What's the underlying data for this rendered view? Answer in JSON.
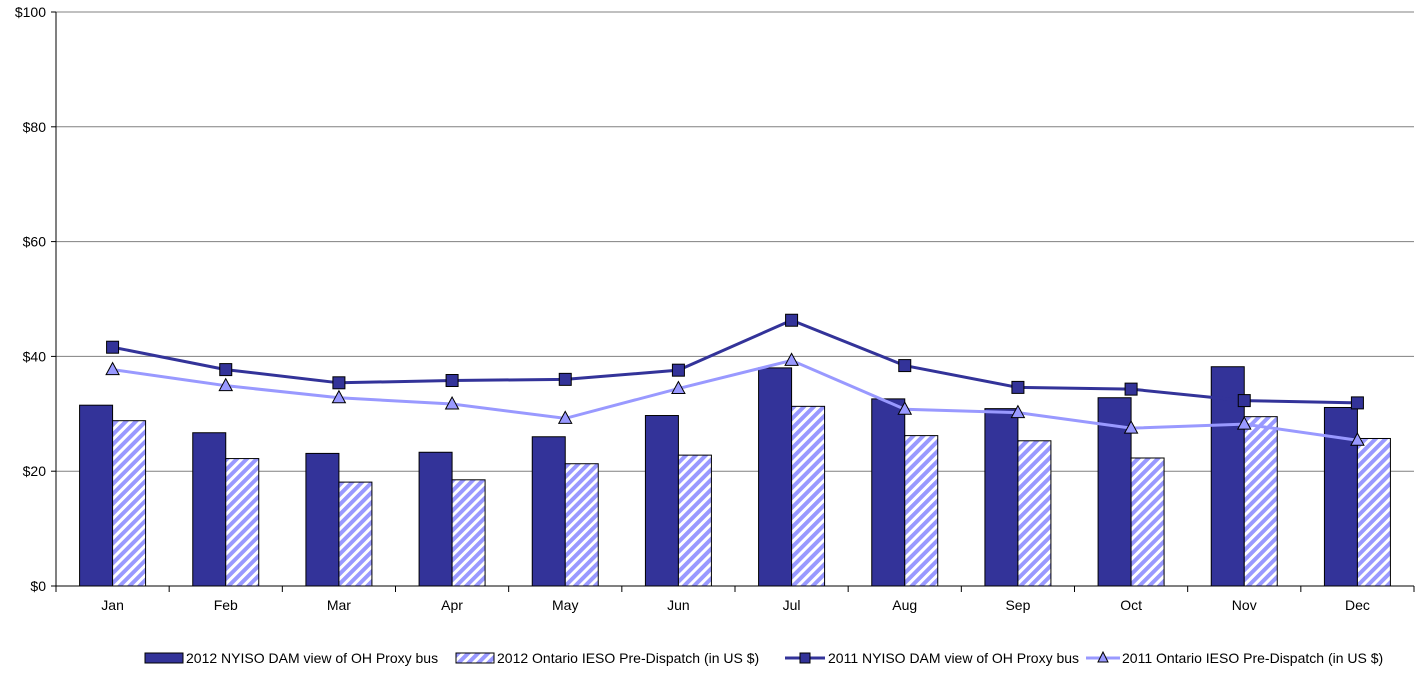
{
  "colors": {
    "bar_2012_nyiso": "#333399",
    "bar_2012_ieso_fill": "#9999ff",
    "line_2011_nyiso": "#333399",
    "line_2011_ieso": "#9999ff",
    "grid": "#808080"
  },
  "chart_data": {
    "type": "bar",
    "categories": [
      "Jan",
      "Feb",
      "Mar",
      "Apr",
      "May",
      "Jun",
      "Jul",
      "Aug",
      "Sep",
      "Oct",
      "Nov",
      "Dec"
    ],
    "y_tick_labels": [
      "$0",
      "$20",
      "$40",
      "$60",
      "$80",
      "$100"
    ],
    "y_ticks": [
      0,
      20,
      40,
      60,
      80,
      100
    ],
    "ylim": [
      0,
      100
    ],
    "grid": true,
    "legend_position": "bottom",
    "series": [
      {
        "name": "2012 NYISO DAM view of OH Proxy bus",
        "type": "bar",
        "style": "solid",
        "values": [
          31.5,
          26.7,
          23.1,
          23.3,
          26.0,
          29.7,
          38.0,
          32.6,
          30.9,
          32.8,
          38.2,
          31.1
        ]
      },
      {
        "name": "2012 Ontario IESO Pre-Dispatch (in US $)",
        "type": "bar",
        "style": "hatched",
        "values": [
          28.8,
          22.2,
          18.1,
          18.5,
          21.3,
          22.8,
          31.3,
          26.2,
          25.3,
          22.3,
          29.5,
          25.7
        ]
      },
      {
        "name": "2011 NYISO DAM view of OH Proxy bus",
        "type": "line",
        "marker": "square",
        "values": [
          41.6,
          37.7,
          35.4,
          35.8,
          36.0,
          37.6,
          46.3,
          38.4,
          34.6,
          34.3,
          32.3,
          31.9
        ]
      },
      {
        "name": "2011 Ontario IESO Pre-Dispatch (in US $)",
        "type": "line",
        "marker": "triangle",
        "values": [
          37.7,
          34.9,
          32.8,
          31.7,
          29.2,
          34.4,
          39.3,
          30.8,
          30.2,
          27.5,
          28.2,
          25.4
        ]
      }
    ]
  }
}
